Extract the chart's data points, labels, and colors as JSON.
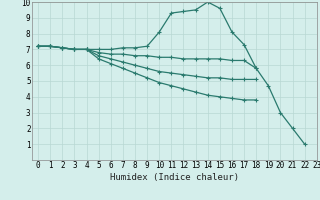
{
  "title": "",
  "xlabel": "Humidex (Indice chaleur)",
  "ylabel": "",
  "background_color": "#d4eeeb",
  "grid_color": "#b8d8d4",
  "line_color": "#2a7a6e",
  "xlim": [
    -0.5,
    23
  ],
  "ylim": [
    0,
    10
  ],
  "xticks": [
    0,
    1,
    2,
    3,
    4,
    5,
    6,
    7,
    8,
    9,
    10,
    11,
    12,
    13,
    14,
    15,
    16,
    17,
    18,
    19,
    20,
    21,
    22,
    23
  ],
  "yticks": [
    1,
    2,
    3,
    4,
    5,
    6,
    7,
    8,
    9,
    10
  ],
  "series": [
    {
      "x": [
        0,
        1,
        2,
        3,
        4,
        5,
        6,
        7,
        8,
        9,
        10,
        11,
        12,
        13,
        14,
        15,
        16,
        17,
        18,
        19,
        20,
        21,
        22
      ],
      "y": [
        7.2,
        7.2,
        7.1,
        7.0,
        7.0,
        7.0,
        7.0,
        7.1,
        7.1,
        7.2,
        8.1,
        9.3,
        9.4,
        9.5,
        10.0,
        9.6,
        8.1,
        7.3,
        5.8,
        4.7,
        3.0,
        2.0,
        1.0
      ]
    },
    {
      "x": [
        0,
        1,
        2,
        3,
        4,
        5,
        6,
        7,
        8,
        9,
        10,
        11,
        12,
        13,
        14,
        15,
        16,
        17,
        18
      ],
      "y": [
        7.2,
        7.2,
        7.1,
        7.0,
        7.0,
        6.8,
        6.7,
        6.7,
        6.6,
        6.6,
        6.5,
        6.5,
        6.4,
        6.4,
        6.4,
        6.4,
        6.3,
        6.3,
        5.8
      ]
    },
    {
      "x": [
        0,
        1,
        2,
        3,
        4,
        5,
        6,
        7,
        8,
        9,
        10,
        11,
        12,
        13,
        14,
        15,
        16,
        17,
        18
      ],
      "y": [
        7.2,
        7.2,
        7.1,
        7.0,
        7.0,
        6.6,
        6.4,
        6.2,
        6.0,
        5.8,
        5.6,
        5.5,
        5.4,
        5.3,
        5.2,
        5.2,
        5.1,
        5.1,
        5.1
      ]
    },
    {
      "x": [
        0,
        1,
        2,
        3,
        4,
        5,
        6,
        7,
        8,
        9,
        10,
        11,
        12,
        13,
        14,
        15,
        16,
        17,
        18
      ],
      "y": [
        7.2,
        7.2,
        7.1,
        7.0,
        7.0,
        6.4,
        6.1,
        5.8,
        5.5,
        5.2,
        4.9,
        4.7,
        4.5,
        4.3,
        4.1,
        4.0,
        3.9,
        3.8,
        3.8
      ]
    }
  ]
}
